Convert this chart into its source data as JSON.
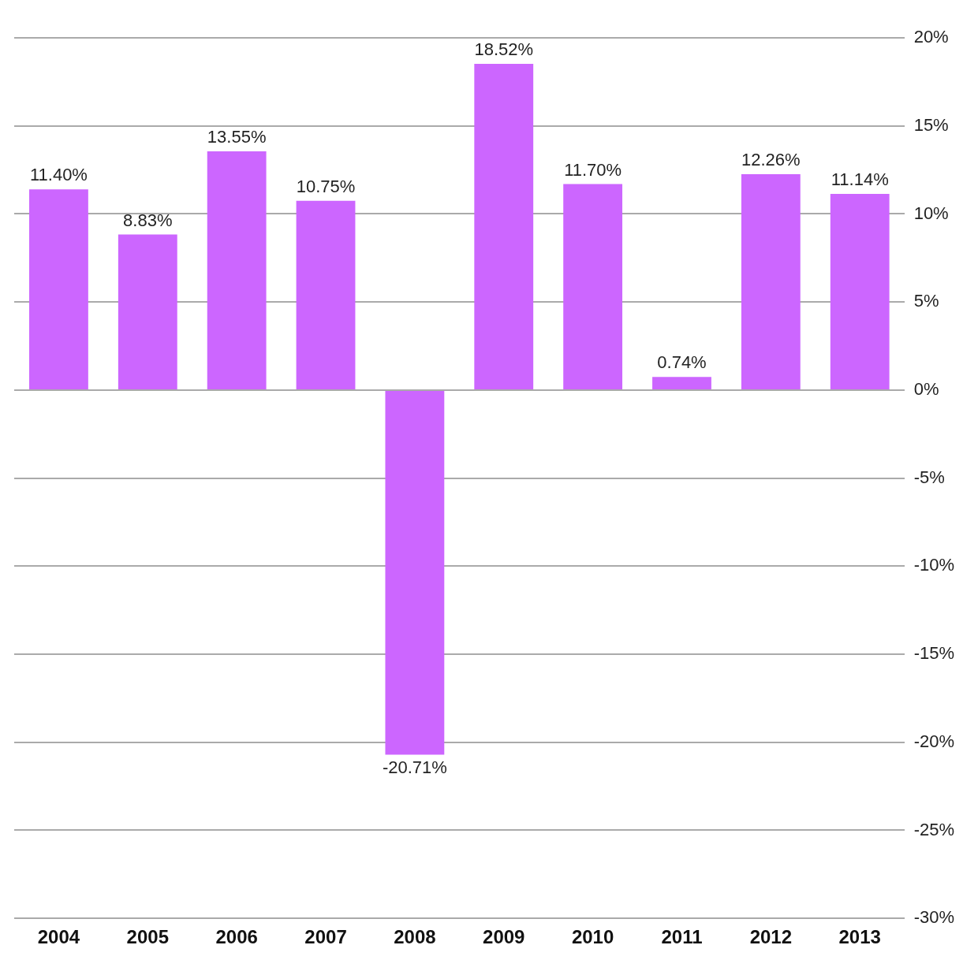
{
  "chart_data": {
    "type": "bar",
    "categories": [
      "2004",
      "2005",
      "2006",
      "2007",
      "2008",
      "2009",
      "2010",
      "2011",
      "2012",
      "2013"
    ],
    "values": [
      11.4,
      8.83,
      13.55,
      10.75,
      -20.71,
      18.52,
      11.7,
      0.74,
      12.26,
      11.14
    ],
    "value_labels": [
      "11.40%",
      "8.83%",
      "13.55%",
      "10.75%",
      "-20.71%",
      "18.52%",
      "11.70%",
      "0.74%",
      "12.26%",
      "11.14%"
    ],
    "color": "#cc66ff",
    "ylim": [
      -30,
      20
    ],
    "yticks": [
      {
        "value": -30,
        "label": "-30%"
      },
      {
        "value": -25,
        "label": "-25%"
      },
      {
        "value": -20,
        "label": "-20%"
      },
      {
        "value": -15,
        "label": "-15%"
      },
      {
        "value": -10,
        "label": "-10%"
      },
      {
        "value": -5,
        "label": "-5%"
      },
      {
        "value": 0,
        "label": "0%"
      },
      {
        "value": 5,
        "label": "5%"
      },
      {
        "value": 10,
        "label": "10%"
      },
      {
        "value": 15,
        "label": "15%"
      },
      {
        "value": 20,
        "label": "20%"
      }
    ],
    "grid": "y",
    "legend": false
  }
}
